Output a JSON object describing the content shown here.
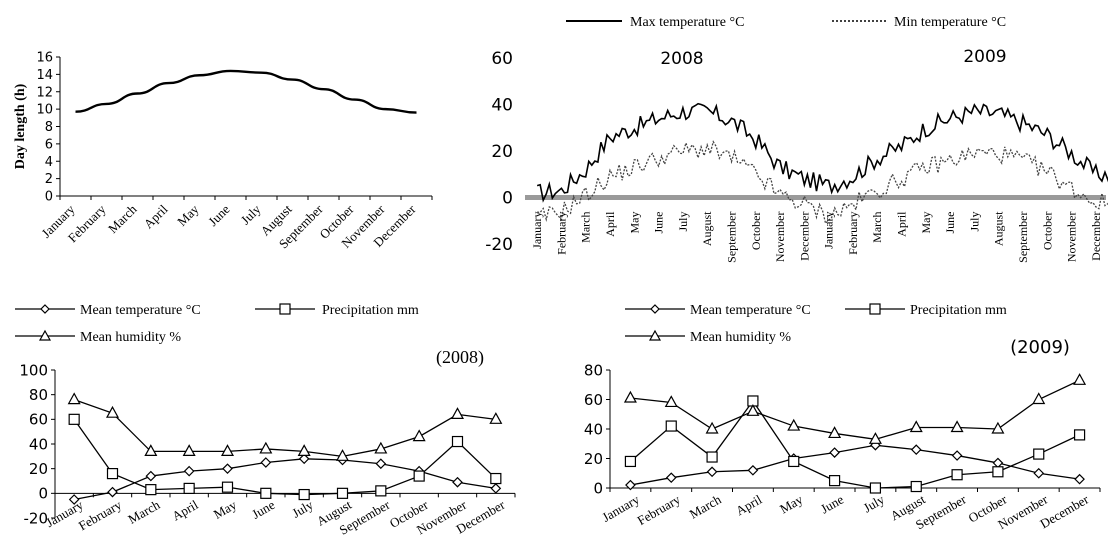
{
  "legends": {
    "temp": {
      "max": "Max temperature °C",
      "min": "Min temperature °C"
    },
    "climate": {
      "mean_temp": "Mean temperature °C",
      "precip": "Precipitation mm",
      "humidity": "Mean humidity %"
    }
  },
  "chart_data": [
    {
      "type": "line",
      "ylabel": "Day length (h)",
      "ylim": [
        0,
        16
      ],
      "yticks": [
        0,
        2,
        4,
        6,
        8,
        10,
        12,
        14,
        16
      ],
      "categories": [
        "January",
        "February",
        "March",
        "April",
        "May",
        "June",
        "July",
        "August",
        "September",
        "October",
        "November",
        "December"
      ],
      "series": [
        {
          "values": [
            9.7,
            10.6,
            11.8,
            13.0,
            13.9,
            14.4,
            14.2,
            13.4,
            12.3,
            11.1,
            10.0,
            9.6
          ]
        }
      ],
      "grid": false
    },
    {
      "type": "line",
      "ylim": [
        -20,
        60
      ],
      "yticks": [
        -20,
        0,
        20,
        40,
        60
      ],
      "annotations": [
        "2008",
        "2009"
      ],
      "categories": [
        "January",
        "February",
        "March",
        "April",
        "May",
        "June",
        "July",
        "August",
        "September",
        "October",
        "November",
        "December",
        "January",
        "February",
        "March",
        "April",
        "May",
        "June",
        "July",
        "August",
        "September",
        "October",
        "November",
        "December"
      ],
      "series": [
        {
          "name": "Max temperature °C",
          "values": [
            2,
            3,
            12,
            26,
            30,
            34,
            37,
            37,
            33,
            25,
            13,
            8,
            5,
            9,
            17,
            22,
            30,
            34,
            37,
            36,
            32,
            27,
            19,
            10
          ]
        },
        {
          "name": "Min temperature °C",
          "values": [
            -9,
            -6,
            1,
            9,
            13,
            17,
            20,
            21,
            17,
            10,
            1,
            -3,
            -8,
            -3,
            3,
            8,
            13,
            16,
            19,
            19,
            16,
            11,
            4,
            -2
          ]
        }
      ],
      "legend": "top",
      "grid": false
    },
    {
      "type": "line",
      "title": "(2008)",
      "ylim": [
        -20,
        100
      ],
      "yticks": [
        -20,
        0,
        20,
        40,
        60,
        80,
        100
      ],
      "categories": [
        "January",
        "February",
        "March",
        "April",
        "May",
        "June",
        "July",
        "August",
        "September",
        "October",
        "November",
        "December"
      ],
      "series": [
        {
          "name": "Mean temperature °C",
          "marker": "diamond",
          "values": [
            -5,
            1,
            14,
            18,
            20,
            25,
            28,
            27,
            24,
            18,
            9,
            4
          ]
        },
        {
          "name": "Precipitation mm",
          "marker": "square",
          "values": [
            60,
            16,
            3,
            4,
            5,
            0,
            -1,
            0,
            2,
            14,
            42,
            12
          ]
        },
        {
          "name": "Mean humidity %",
          "marker": "triangle",
          "values": [
            76,
            65,
            34,
            34,
            34,
            36,
            34,
            30,
            36,
            46,
            64,
            60
          ]
        }
      ],
      "legend": "top",
      "grid": false
    },
    {
      "type": "line",
      "title": "(2009)",
      "ylim": [
        0,
        80
      ],
      "yticks": [
        0,
        20,
        40,
        60,
        80
      ],
      "categories": [
        "January",
        "February",
        "March",
        "April",
        "May",
        "June",
        "July",
        "August",
        "September",
        "October",
        "November",
        "December"
      ],
      "series": [
        {
          "name": "Mean temperature °C",
          "marker": "diamond",
          "values": [
            2,
            7,
            11,
            12,
            20,
            24,
            29,
            26,
            22,
            17,
            10,
            6
          ]
        },
        {
          "name": "Precipitation mm",
          "marker": "square",
          "values": [
            18,
            42,
            21,
            59,
            18,
            5,
            0,
            1,
            9,
            11,
            23,
            36
          ]
        },
        {
          "name": "Mean humidity %",
          "marker": "triangle",
          "values": [
            61,
            58,
            40,
            52,
            42,
            37,
            33,
            41,
            41,
            40,
            60,
            73
          ]
        }
      ],
      "legend": "top",
      "grid": false
    }
  ]
}
